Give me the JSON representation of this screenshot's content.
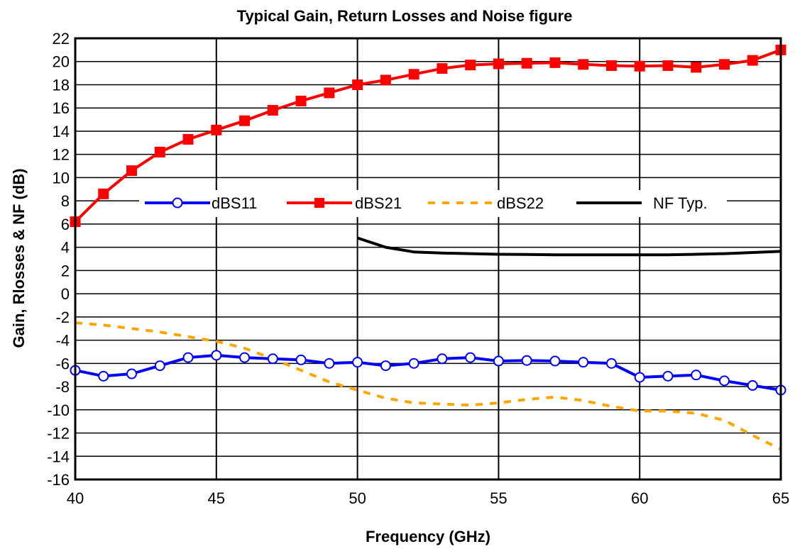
{
  "chart_data": {
    "type": "line",
    "title": "Typical Gain, Return Losses and Noise figure",
    "xlabel": "Frequency (GHz)",
    "ylabel": "Gain, Rlosses & NF (dB)",
    "xlim": [
      40,
      65
    ],
    "ylim": [
      -16,
      22
    ],
    "xticks": [
      40,
      45,
      50,
      55,
      60,
      65
    ],
    "yticks": [
      -16,
      -14,
      -12,
      -10,
      -8,
      -6,
      -4,
      -2,
      0,
      2,
      4,
      6,
      8,
      10,
      12,
      14,
      16,
      18,
      20,
      22
    ],
    "grid": true,
    "legend_position": "middle",
    "series": [
      {
        "name": "dBS11",
        "color": "#0000ff",
        "style": "solid",
        "marker": "circle-open",
        "x": [
          40,
          41,
          42,
          43,
          44,
          45,
          46,
          47,
          48,
          49,
          50,
          51,
          52,
          53,
          54,
          55,
          56,
          57,
          58,
          59,
          60,
          61,
          62,
          63,
          64,
          65
        ],
        "y": [
          -6.6,
          -7.1,
          -6.9,
          -6.2,
          -5.5,
          -5.3,
          -5.5,
          -5.6,
          -5.7,
          -6.0,
          -5.9,
          -6.2,
          -6.0,
          -5.6,
          -5.5,
          -5.8,
          -5.75,
          -5.8,
          -5.9,
          -6.0,
          -7.2,
          -7.1,
          -7.0,
          -7.5,
          -7.9,
          -8.3
        ]
      },
      {
        "name": "dBS21",
        "color": "#ff0000",
        "style": "solid",
        "marker": "square-filled",
        "x": [
          40,
          41,
          42,
          43,
          44,
          45,
          46,
          47,
          48,
          49,
          50,
          51,
          52,
          53,
          54,
          55,
          56,
          57,
          58,
          59,
          60,
          61,
          62,
          63,
          64,
          65
        ],
        "y": [
          6.2,
          8.6,
          10.6,
          12.2,
          13.3,
          14.1,
          14.9,
          15.8,
          16.6,
          17.3,
          18.0,
          18.4,
          18.9,
          19.4,
          19.7,
          19.8,
          19.85,
          19.9,
          19.75,
          19.65,
          19.6,
          19.65,
          19.5,
          19.75,
          20.1,
          21.0
        ]
      },
      {
        "name": "dBS22",
        "color": "#ffa500",
        "style": "dashed",
        "marker": "none",
        "x": [
          40,
          41,
          42,
          43,
          44,
          45,
          46,
          47,
          48,
          49,
          50,
          51,
          52,
          53,
          54,
          55,
          56,
          57,
          58,
          59,
          60,
          61,
          62,
          63,
          64,
          65
        ],
        "y": [
          -2.5,
          -2.7,
          -3.0,
          -3.3,
          -3.7,
          -4.1,
          -4.7,
          -5.6,
          -6.6,
          -7.6,
          -8.3,
          -9.0,
          -9.4,
          -9.5,
          -9.6,
          -9.4,
          -9.1,
          -8.9,
          -9.2,
          -9.7,
          -10.1,
          -10.1,
          -10.3,
          -10.9,
          -12.2,
          -13.4
        ]
      },
      {
        "name": "NF Typ.",
        "color": "#000000",
        "style": "solid",
        "marker": "none",
        "x": [
          50,
          51,
          52,
          53,
          54,
          55,
          56,
          57,
          58,
          59,
          60,
          61,
          62,
          63,
          64,
          65
        ],
        "y": [
          4.8,
          4.0,
          3.6,
          3.5,
          3.45,
          3.4,
          3.38,
          3.35,
          3.35,
          3.35,
          3.35,
          3.35,
          3.4,
          3.45,
          3.55,
          3.65
        ]
      }
    ]
  }
}
